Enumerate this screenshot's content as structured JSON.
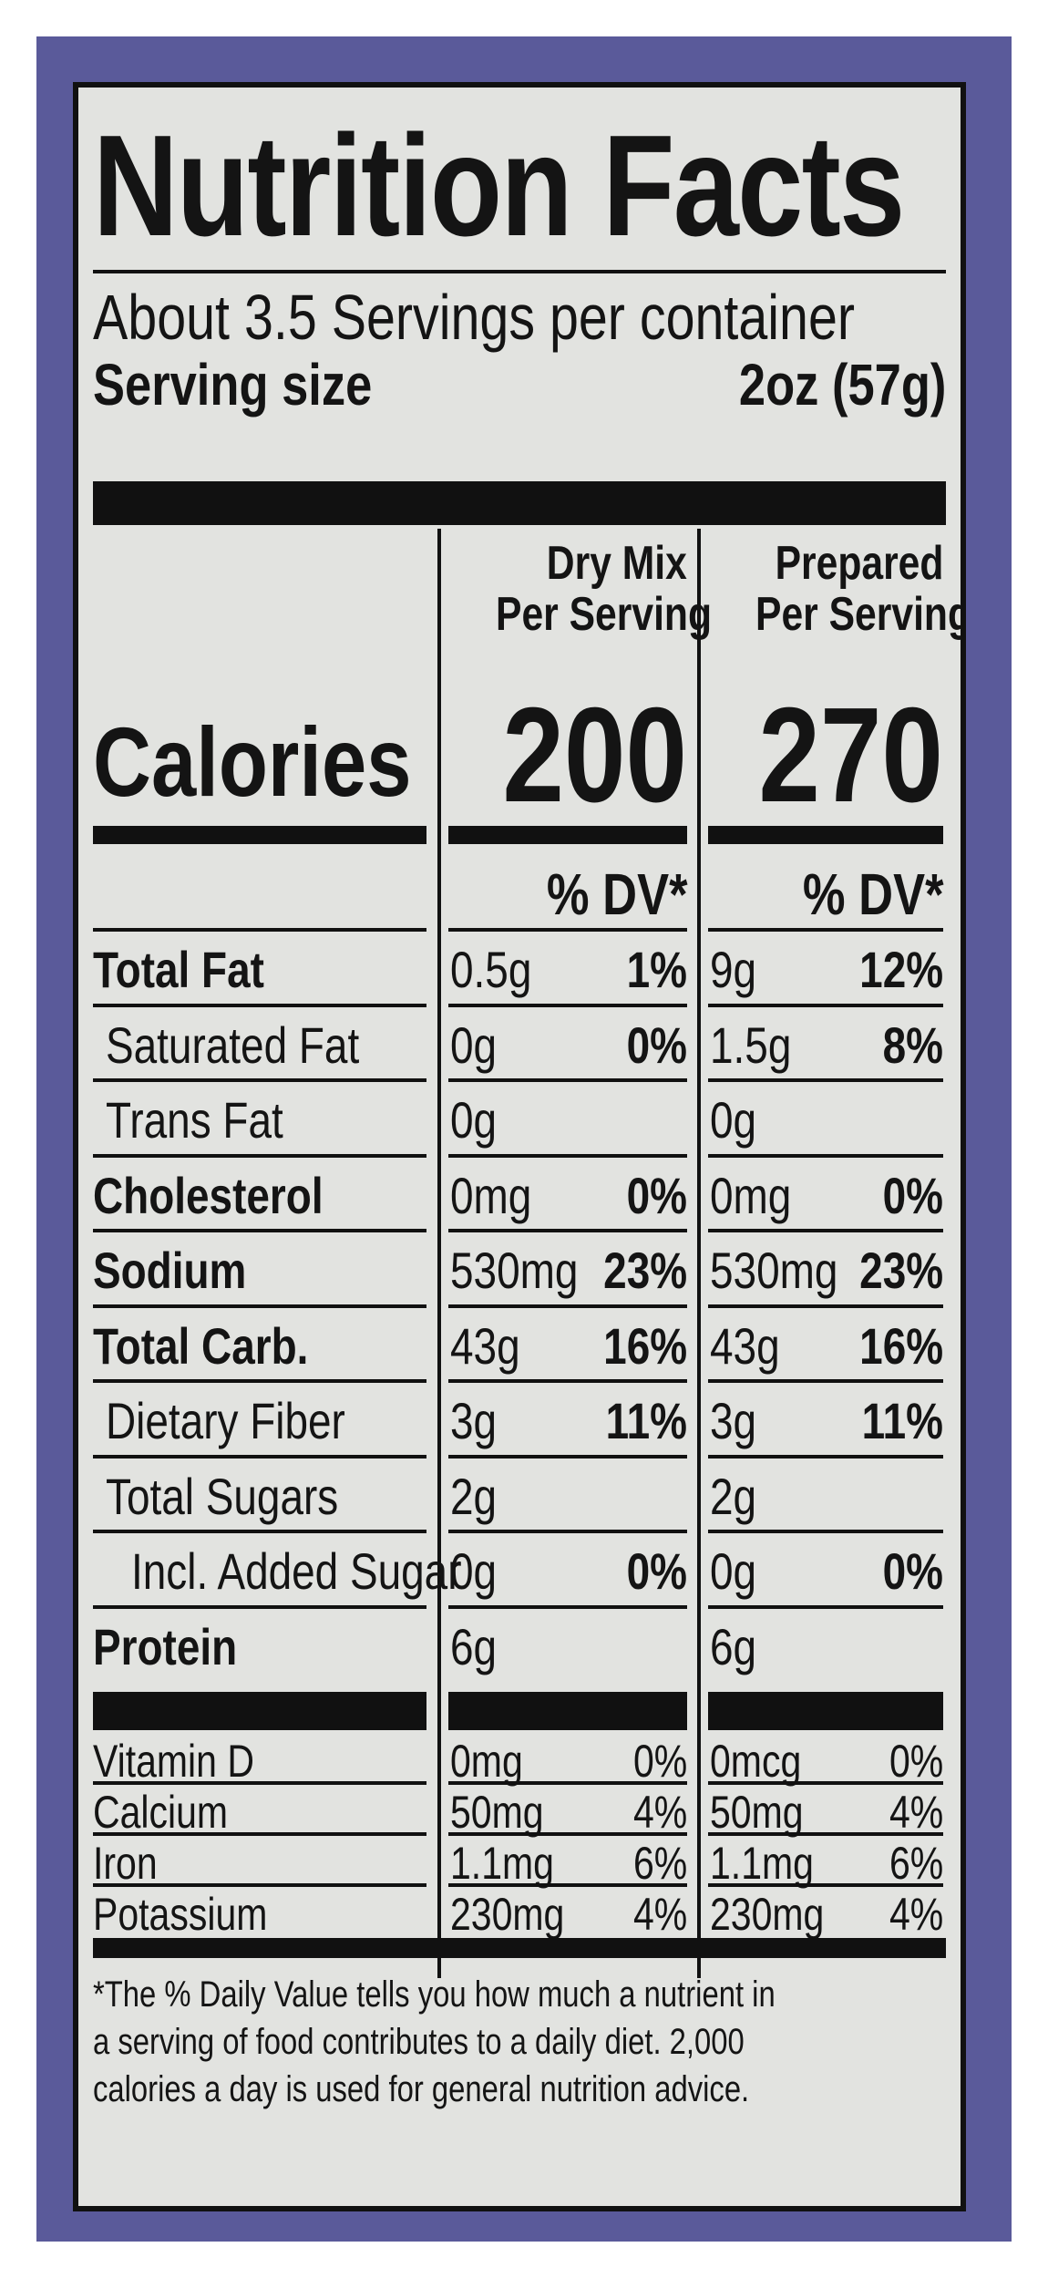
{
  "title": "Nutrition Facts",
  "servings_per_container": "About 3.5 Servings per container",
  "serving_size_label": "Serving size",
  "serving_size_value": "2oz (57g)",
  "col1_head": [
    "Dry Mix",
    "Per Serving"
  ],
  "col2_head": [
    "Prepared",
    "Per Serving"
  ],
  "calories_label": "Calories",
  "calories_dry": "200",
  "calories_prepared": "270",
  "dv_header": "% DV*",
  "nutrients": [
    {
      "name": "Total Fat",
      "bold": true,
      "indent": 0,
      "dry_amt": "0.5g",
      "dry_dv": "1%",
      "prep_amt": "9g",
      "prep_dv": "12%"
    },
    {
      "name": "Saturated Fat",
      "bold": false,
      "indent": 1,
      "dry_amt": "0g",
      "dry_dv": "0%",
      "prep_amt": "1.5g",
      "prep_dv": "8%"
    },
    {
      "name": "Trans Fat",
      "bold": false,
      "indent": 1,
      "dry_amt": "0g",
      "dry_dv": "",
      "prep_amt": "0g",
      "prep_dv": ""
    },
    {
      "name": "Cholesterol",
      "bold": true,
      "indent": 0,
      "dry_amt": "0mg",
      "dry_dv": "0%",
      "prep_amt": "0mg",
      "prep_dv": "0%"
    },
    {
      "name": "Sodium",
      "bold": true,
      "indent": 0,
      "dry_amt": "530mg",
      "dry_dv": "23%",
      "prep_amt": "530mg",
      "prep_dv": "23%"
    },
    {
      "name": "Total Carb.",
      "bold": true,
      "indent": 0,
      "dry_amt": "43g",
      "dry_dv": "16%",
      "prep_amt": "43g",
      "prep_dv": "16%"
    },
    {
      "name": "Dietary Fiber",
      "bold": false,
      "indent": 1,
      "dry_amt": "3g",
      "dry_dv": "11%",
      "prep_amt": "3g",
      "prep_dv": "11%"
    },
    {
      "name": "Total Sugars",
      "bold": false,
      "indent": 1,
      "dry_amt": "2g",
      "dry_dv": "",
      "prep_amt": "2g",
      "prep_dv": ""
    },
    {
      "name": "Incl. Added Sugar",
      "bold": false,
      "indent": 2,
      "dry_amt": "0g",
      "dry_dv": "0%",
      "prep_amt": "0g",
      "prep_dv": "0%"
    },
    {
      "name": "Protein",
      "bold": true,
      "indent": 0,
      "dry_amt": "6g",
      "dry_dv": "",
      "prep_amt": "6g",
      "prep_dv": ""
    }
  ],
  "vitamins": [
    {
      "name": "Vitamin D",
      "dry_amt": "0mg",
      "dry_dv": "0%",
      "prep_amt": "0mcg",
      "prep_dv": "0%"
    },
    {
      "name": "Calcium",
      "dry_amt": "50mg",
      "dry_dv": "4%",
      "prep_amt": "50mg",
      "prep_dv": "4%"
    },
    {
      "name": "Iron",
      "dry_amt": "1.1mg",
      "dry_dv": "6%",
      "prep_amt": "1.1mg",
      "prep_dv": "6%"
    },
    {
      "name": "Potassium",
      "dry_amt": "230mg",
      "dry_dv": "4%",
      "prep_amt": "230mg",
      "prep_dv": "4%"
    }
  ],
  "footnote": [
    "*The % Daily Value tells you how much a nutrient in",
    "a serving of food contributes to a daily diet. 2,000",
    "calories a day is used for general nutrition advice."
  ],
  "colors": {
    "background_panel": "#5a5a9a",
    "label_bg": "#e2e3e0",
    "ink": "#111111"
  }
}
